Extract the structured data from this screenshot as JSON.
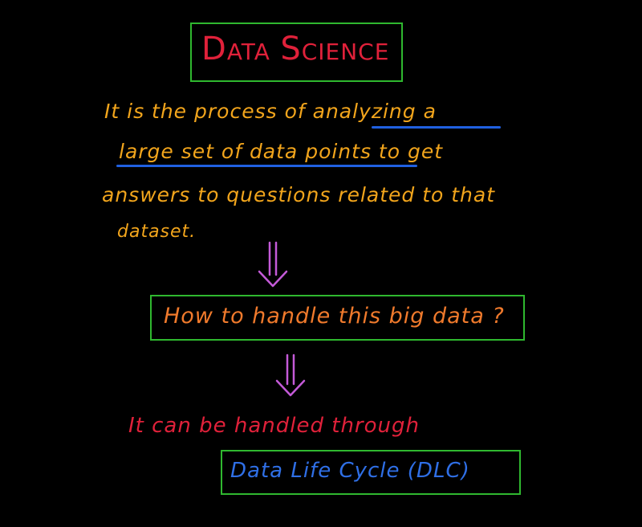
{
  "title": {
    "text_main_1": "D",
    "text_small_1": "ATA",
    "text_main_2": "S",
    "text_small_2": "CIENCE",
    "color": "#e0213a",
    "border_color": "#2fb82f"
  },
  "definition": {
    "color": "#f2a51c",
    "underline_color": "#2060e0",
    "line1_pre": "It is the process of ",
    "line1_underlined": "analyzing a",
    "line2_underlined": "large set of data points",
    "line2_post": " to get",
    "line3": "answers to questions related to that",
    "line4": "dataset."
  },
  "arrows": {
    "color": "#c45ad8"
  },
  "question_box": {
    "text": "How to handle this big data ?",
    "color": "#f07a2c",
    "border_color": "#2fb82f"
  },
  "handled": {
    "text": "It can be handled through",
    "color": "#e0213a"
  },
  "dlc_box": {
    "text": "Data Life Cycle (DLC)",
    "color": "#2f6fe6",
    "border_color": "#2fb82f"
  }
}
